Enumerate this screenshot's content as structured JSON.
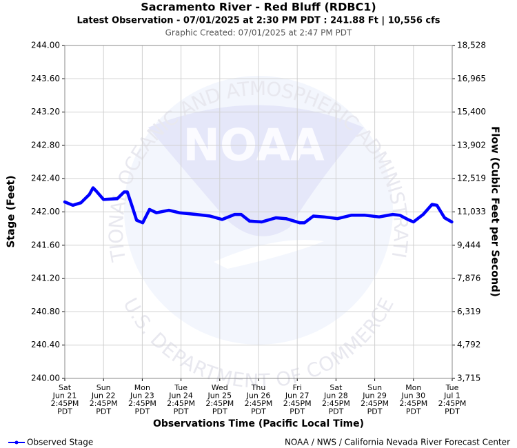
{
  "chart_data": {
    "type": "line",
    "title": "Sacramento River - Red Bluff (RDBC1)",
    "subtitle": "Latest Observation - 07/01/2025 at 2:30 PM PDT : 241.88 Ft | 10,556 cfs",
    "created": "Graphic Created: 07/01/2025 at 2:47 PM PDT",
    "xlabel": "Observations Time (Pacific Local Time)",
    "ylabel": "Stage (Feet)",
    "y2label": "Flow (Cubic Feet per Second)",
    "credit": "NOAA / NWS / California Nevada River Forecast Center",
    "watermark": {
      "logo": "NOAA",
      "ring_top": "NATIONAL OCEANIC AND ATMOSPHERIC ADMINISTRATION",
      "ring_bottom": "U.S. DEPARTMENT OF COMMERCE"
    },
    "grid": true,
    "x": [
      "2025-06-21T14:45",
      "2025-06-21T19:45",
      "2025-06-22T00:45",
      "2025-06-22T06:00",
      "2025-06-22T08:15",
      "2025-06-22T10:15",
      "2025-06-22T14:45",
      "2025-06-22T23:15",
      "2025-06-23T03:30",
      "2025-06-23T05:30",
      "2025-06-23T08:15",
      "2025-06-23T11:15",
      "2025-06-23T15:00",
      "2025-06-23T19:15",
      "2025-06-23T23:30",
      "2025-06-24T07:15",
      "2025-06-24T13:45",
      "2025-06-25T00:15",
      "2025-06-25T08:45",
      "2025-06-25T16:15",
      "2025-06-26T00:00",
      "2025-06-26T04:00",
      "2025-06-26T09:15",
      "2025-06-26T16:45",
      "2025-06-27T01:30",
      "2025-06-27T07:45",
      "2025-06-27T16:15",
      "2025-06-27T19:15",
      "2025-06-28T00:45",
      "2025-06-28T07:15",
      "2025-06-28T15:45",
      "2025-06-29T00:15",
      "2025-06-29T08:45",
      "2025-06-29T17:30",
      "2025-06-30T02:00",
      "2025-06-30T06:15",
      "2025-06-30T11:15",
      "2025-06-30T14:45",
      "2025-06-30T20:45",
      "2025-07-01T02:15",
      "2025-07-01T05:15",
      "2025-07-01T10:00",
      "2025-07-01T14:30"
    ],
    "series": [
      {
        "name": "Observed Stage",
        "color": "#0000ff",
        "values": [
          242.12,
          242.08,
          242.11,
          242.21,
          242.29,
          242.25,
          242.15,
          242.16,
          242.24,
          242.24,
          242.08,
          241.9,
          241.87,
          242.03,
          241.99,
          242.02,
          241.99,
          241.97,
          241.95,
          241.91,
          241.97,
          241.97,
          241.89,
          241.88,
          241.93,
          241.92,
          241.87,
          241.87,
          241.95,
          241.94,
          241.92,
          241.96,
          241.96,
          241.94,
          241.97,
          241.96,
          241.91,
          241.88,
          241.97,
          242.09,
          242.08,
          241.93,
          241.88
        ]
      }
    ],
    "xlim": [
      "2025-06-21T14:45",
      "2025-07-01T14:45"
    ],
    "xticks": [
      {
        "value": "2025-06-21T14:45",
        "label": "Sat\nJun 21\n2:45PM\nPDT"
      },
      {
        "value": "2025-06-22T14:45",
        "label": "Sun\nJun 22\n2:45PM\nPDT"
      },
      {
        "value": "2025-06-23T14:45",
        "label": "Mon\nJun 23\n2:45PM\nPDT"
      },
      {
        "value": "2025-06-24T14:45",
        "label": "Tue\nJun 24\n2:45PM\nPDT"
      },
      {
        "value": "2025-06-25T14:45",
        "label": "Wed\nJun 25\n2:45PM\nPDT"
      },
      {
        "value": "2025-06-26T14:45",
        "label": "Thu\nJun 26\n2:45PM\nPDT"
      },
      {
        "value": "2025-06-27T14:45",
        "label": "Fri\nJun 27\n2:45PM\nPDT"
      },
      {
        "value": "2025-06-28T14:45",
        "label": "Sat\nJun 28\n2:45PM\nPDT"
      },
      {
        "value": "2025-06-29T14:45",
        "label": "Sun\nJun 29\n2:45PM\nPDT"
      },
      {
        "value": "2025-06-30T14:45",
        "label": "Mon\nJun 30\n2:45PM\nPDT"
      },
      {
        "value": "2025-07-01T14:45",
        "label": "Tue\nJul 1\n2:45PM\nPDT"
      }
    ],
    "ylim": [
      240,
      244
    ],
    "yticks": [
      {
        "value": 240,
        "label": "240.00"
      },
      {
        "value": 240.4,
        "label": "240.40"
      },
      {
        "value": 240.8,
        "label": "240.80"
      },
      {
        "value": 241.2,
        "label": "241.20"
      },
      {
        "value": 241.6,
        "label": "241.60"
      },
      {
        "value": 242,
        "label": "242.00"
      },
      {
        "value": 242.4,
        "label": "242.40"
      },
      {
        "value": 242.8,
        "label": "242.80"
      },
      {
        "value": 243.2,
        "label": "243.20"
      },
      {
        "value": 243.6,
        "label": "243.60"
      },
      {
        "value": 244,
        "label": "244.00"
      }
    ],
    "y2lim": [
      3715,
      18528
    ],
    "y2ticks": [
      {
        "value": 3715,
        "label": "3,715"
      },
      {
        "value": 4792,
        "label": "4,792"
      },
      {
        "value": 6319,
        "label": "6,319"
      },
      {
        "value": 7876,
        "label": "7,876"
      },
      {
        "value": 9444,
        "label": "9,444"
      },
      {
        "value": 11033,
        "label": "11,033"
      },
      {
        "value": 12519,
        "label": "12,519"
      },
      {
        "value": 13902,
        "label": "13,902"
      },
      {
        "value": 15400,
        "label": "15,400"
      },
      {
        "value": 16965,
        "label": "16,965"
      },
      {
        "value": 18528,
        "label": "18,528"
      }
    ]
  }
}
